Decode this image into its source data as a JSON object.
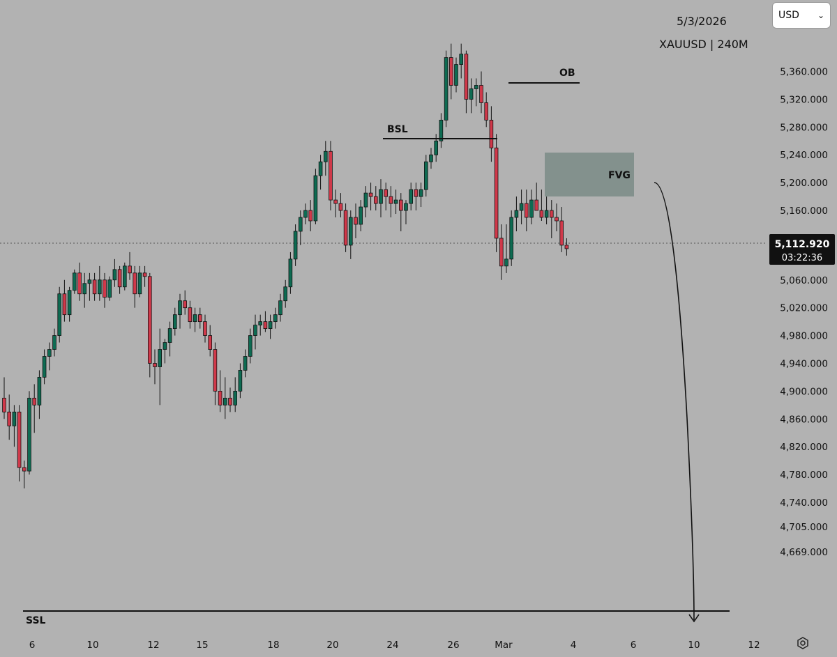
{
  "header": {
    "date": "5/3/2026",
    "symbol": "XAUUSD | 240M",
    "currency": "USD"
  },
  "price_badge": {
    "price": "5,112.920",
    "countdown": "03:22:36"
  },
  "chart_data": {
    "type": "candlestick",
    "ylim": [
      4640,
      5410
    ],
    "yticks": [
      "5,360.000",
      "5,320.000",
      "5,280.000",
      "5,240.000",
      "5,200.000",
      "5,160.000",
      "5,060.000",
      "5,020.000",
      "4,980.000",
      "4,940.000",
      "4,900.000",
      "4,860.000",
      "4,820.000",
      "4,780.000",
      "4,740.000",
      "4,705.000",
      "4,669.000"
    ],
    "xticks": [
      "6",
      "10",
      "12",
      "15",
      "18",
      "20",
      "24",
      "26",
      "Mar",
      "4",
      "6",
      "10",
      "12"
    ],
    "current_price": 5112.92,
    "candles": [
      [
        4890,
        4920,
        4860,
        4870
      ],
      [
        4870,
        4895,
        4830,
        4850
      ],
      [
        4850,
        4880,
        4820,
        4870
      ],
      [
        4870,
        4880,
        4770,
        4790
      ],
      [
        4790,
        4800,
        4760,
        4785
      ],
      [
        4785,
        4900,
        4780,
        4890
      ],
      [
        4890,
        4910,
        4840,
        4880
      ],
      [
        4880,
        4930,
        4860,
        4920
      ],
      [
        4920,
        4960,
        4910,
        4950
      ],
      [
        4950,
        4970,
        4930,
        4960
      ],
      [
        4960,
        4990,
        4950,
        4980
      ],
      [
        4980,
        5050,
        4970,
        5040
      ],
      [
        5040,
        5060,
        5000,
        5010
      ],
      [
        5010,
        5050,
        5000,
        5045
      ],
      [
        5045,
        5075,
        5040,
        5070
      ],
      [
        5070,
        5085,
        5030,
        5040
      ],
      [
        5040,
        5070,
        5020,
        5055
      ],
      [
        5055,
        5070,
        5030,
        5060
      ],
      [
        5060,
        5070,
        5030,
        5040
      ],
      [
        5040,
        5080,
        5030,
        5060
      ],
      [
        5060,
        5070,
        5020,
        5035
      ],
      [
        5035,
        5065,
        5030,
        5060
      ],
      [
        5060,
        5090,
        5050,
        5075
      ],
      [
        5075,
        5080,
        5040,
        5050
      ],
      [
        5050,
        5085,
        5045,
        5080
      ],
      [
        5080,
        5100,
        5060,
        5070
      ],
      [
        5070,
        5080,
        5020,
        5040
      ],
      [
        5040,
        5080,
        5035,
        5070
      ],
      [
        5070,
        5080,
        5050,
        5065
      ],
      [
        5065,
        5070,
        4920,
        4940
      ],
      [
        4940,
        4960,
        4910,
        4935
      ],
      [
        4935,
        4990,
        4880,
        4960
      ],
      [
        4960,
        4975,
        4940,
        4970
      ],
      [
        4970,
        5000,
        4950,
        4990
      ],
      [
        4990,
        5020,
        4980,
        5010
      ],
      [
        5010,
        5040,
        4990,
        5030
      ],
      [
        5030,
        5045,
        5010,
        5020
      ],
      [
        5020,
        5030,
        4990,
        5000
      ],
      [
        5000,
        5020,
        4985,
        5010
      ],
      [
        5010,
        5020,
        4990,
        5000
      ],
      [
        5000,
        5010,
        4970,
        4980
      ],
      [
        4980,
        4995,
        4950,
        4960
      ],
      [
        4960,
        4970,
        4880,
        4900
      ],
      [
        4900,
        4930,
        4870,
        4880
      ],
      [
        4880,
        4920,
        4860,
        4890
      ],
      [
        4890,
        4905,
        4870,
        4880
      ],
      [
        4880,
        4920,
        4870,
        4900
      ],
      [
        4900,
        4940,
        4890,
        4930
      ],
      [
        4930,
        4960,
        4920,
        4950
      ],
      [
        4950,
        4990,
        4940,
        4980
      ],
      [
        4980,
        5010,
        4960,
        4995
      ],
      [
        4995,
        5010,
        4980,
        5000
      ],
      [
        5000,
        5015,
        4985,
        4990
      ],
      [
        4990,
        5010,
        4975,
        5000
      ],
      [
        5000,
        5020,
        4990,
        5010
      ],
      [
        5010,
        5040,
        5000,
        5030
      ],
      [
        5030,
        5060,
        5020,
        5050
      ],
      [
        5050,
        5100,
        5040,
        5090
      ],
      [
        5090,
        5140,
        5080,
        5130
      ],
      [
        5130,
        5160,
        5110,
        5150
      ],
      [
        5150,
        5170,
        5140,
        5160
      ],
      [
        5160,
        5175,
        5130,
        5145
      ],
      [
        5145,
        5220,
        5140,
        5210
      ],
      [
        5210,
        5240,
        5190,
        5230
      ],
      [
        5230,
        5260,
        5210,
        5245
      ],
      [
        5245,
        5260,
        5160,
        5175
      ],
      [
        5175,
        5190,
        5150,
        5170
      ],
      [
        5170,
        5185,
        5150,
        5160
      ],
      [
        5160,
        5170,
        5100,
        5110
      ],
      [
        5110,
        5160,
        5090,
        5150
      ],
      [
        5150,
        5170,
        5120,
        5140
      ],
      [
        5140,
        5175,
        5130,
        5165
      ],
      [
        5165,
        5195,
        5150,
        5185
      ],
      [
        5185,
        5200,
        5160,
        5180
      ],
      [
        5180,
        5195,
        5160,
        5170
      ],
      [
        5170,
        5205,
        5150,
        5190
      ],
      [
        5190,
        5200,
        5160,
        5180
      ],
      [
        5180,
        5195,
        5150,
        5170
      ],
      [
        5170,
        5190,
        5155,
        5175
      ],
      [
        5175,
        5185,
        5130,
        5160
      ],
      [
        5160,
        5175,
        5140,
        5170
      ],
      [
        5170,
        5200,
        5160,
        5190
      ],
      [
        5190,
        5200,
        5160,
        5180
      ],
      [
        5180,
        5200,
        5165,
        5190
      ],
      [
        5190,
        5240,
        5180,
        5230
      ],
      [
        5230,
        5250,
        5220,
        5240
      ],
      [
        5240,
        5270,
        5230,
        5260
      ],
      [
        5260,
        5300,
        5250,
        5290
      ],
      [
        5290,
        5390,
        5280,
        5380
      ],
      [
        5380,
        5400,
        5320,
        5340
      ],
      [
        5340,
        5380,
        5330,
        5370
      ],
      [
        5370,
        5400,
        5350,
        5385
      ],
      [
        5385,
        5390,
        5300,
        5320
      ],
      [
        5320,
        5350,
        5300,
        5335
      ],
      [
        5335,
        5350,
        5310,
        5340
      ],
      [
        5340,
        5360,
        5300,
        5315
      ],
      [
        5315,
        5330,
        5280,
        5290
      ],
      [
        5290,
        5310,
        5230,
        5250
      ],
      [
        5250,
        5270,
        5100,
        5120
      ],
      [
        5120,
        5140,
        5060,
        5080
      ],
      [
        5080,
        5140,
        5070,
        5090
      ],
      [
        5090,
        5160,
        5080,
        5150
      ],
      [
        5150,
        5180,
        5130,
        5160
      ],
      [
        5160,
        5190,
        5140,
        5170
      ],
      [
        5170,
        5190,
        5130,
        5150
      ],
      [
        5150,
        5190,
        5140,
        5175
      ],
      [
        5175,
        5200,
        5160,
        5160
      ],
      [
        5160,
        5190,
        5145,
        5150
      ],
      [
        5150,
        5180,
        5140,
        5160
      ],
      [
        5160,
        5175,
        5120,
        5150
      ],
      [
        5150,
        5170,
        5130,
        5145
      ],
      [
        5145,
        5165,
        5100,
        5110
      ],
      [
        5110,
        5120,
        5095,
        5105
      ]
    ]
  },
  "annotations": {
    "bsl": "BSL",
    "ob": "OB",
    "fvg": "FVG",
    "ssl": "SSL"
  }
}
